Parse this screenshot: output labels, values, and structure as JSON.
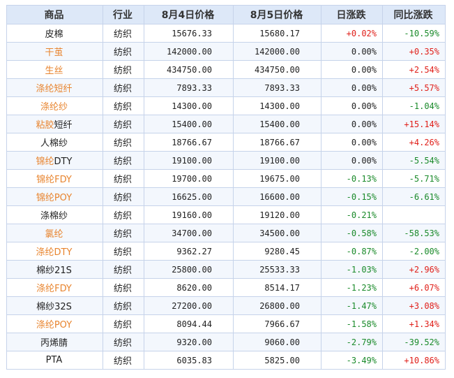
{
  "headers": [
    "商品",
    "行业",
    "8月4日价格",
    "8月5日价格",
    "日涨跌",
    "同比涨跌"
  ],
  "colors": {
    "highlight": "#e8842e",
    "up": "#e0201a",
    "down": "#1a8a2a",
    "flat": "#222222"
  },
  "rows": [
    {
      "name_hl": "",
      "name_rest": "皮棉",
      "industry": "纺织",
      "price_aug4": "15676.33",
      "price_aug5": "15680.17",
      "daily": "+0.02%",
      "daily_dir": "up",
      "yoy": "-10.59%",
      "yoy_dir": "down"
    },
    {
      "name_hl": "干茧",
      "name_rest": "",
      "industry": "纺织",
      "price_aug4": "142000.00",
      "price_aug5": "142000.00",
      "daily": "0.00%",
      "daily_dir": "flat",
      "yoy": "+0.35%",
      "yoy_dir": "up"
    },
    {
      "name_hl": "生丝",
      "name_rest": "",
      "industry": "纺织",
      "price_aug4": "434750.00",
      "price_aug5": "434750.00",
      "daily": "0.00%",
      "daily_dir": "flat",
      "yoy": "+2.54%",
      "yoy_dir": "up"
    },
    {
      "name_hl": "涤纶短纤",
      "name_rest": "",
      "industry": "纺织",
      "price_aug4": "7893.33",
      "price_aug5": "7893.33",
      "daily": "0.00%",
      "daily_dir": "flat",
      "yoy": "+5.57%",
      "yoy_dir": "up"
    },
    {
      "name_hl": "涤纶纱",
      "name_rest": "",
      "industry": "纺织",
      "price_aug4": "14300.00",
      "price_aug5": "14300.00",
      "daily": "0.00%",
      "daily_dir": "flat",
      "yoy": "-1.04%",
      "yoy_dir": "down"
    },
    {
      "name_hl": "粘胶",
      "name_rest": "短纤",
      "industry": "纺织",
      "price_aug4": "15400.00",
      "price_aug5": "15400.00",
      "daily": "0.00%",
      "daily_dir": "flat",
      "yoy": "+15.14%",
      "yoy_dir": "up"
    },
    {
      "name_hl": "",
      "name_rest": "人棉纱",
      "industry": "纺织",
      "price_aug4": "18766.67",
      "price_aug5": "18766.67",
      "daily": "0.00%",
      "daily_dir": "flat",
      "yoy": "+4.26%",
      "yoy_dir": "up"
    },
    {
      "name_hl": "锦纶",
      "name_rest": "DTY",
      "industry": "纺织",
      "price_aug4": "19100.00",
      "price_aug5": "19100.00",
      "daily": "0.00%",
      "daily_dir": "flat",
      "yoy": "-5.54%",
      "yoy_dir": "down"
    },
    {
      "name_hl": "锦纶FDY",
      "name_rest": "",
      "industry": "纺织",
      "price_aug4": "19700.00",
      "price_aug5": "19675.00",
      "daily": "-0.13%",
      "daily_dir": "down",
      "yoy": "-5.71%",
      "yoy_dir": "down"
    },
    {
      "name_hl": "锦纶POY",
      "name_rest": "",
      "industry": "纺织",
      "price_aug4": "16625.00",
      "price_aug5": "16600.00",
      "daily": "-0.15%",
      "daily_dir": "down",
      "yoy": "-6.61%",
      "yoy_dir": "down"
    },
    {
      "name_hl": "",
      "name_rest": "涤棉纱",
      "industry": "纺织",
      "price_aug4": "19160.00",
      "price_aug5": "19120.00",
      "daily": "-0.21%",
      "daily_dir": "down",
      "yoy": "",
      "yoy_dir": "flat"
    },
    {
      "name_hl": "氯纶",
      "name_rest": "",
      "industry": "纺织",
      "price_aug4": "34700.00",
      "price_aug5": "34500.00",
      "daily": "-0.58%",
      "daily_dir": "down",
      "yoy": "-58.53%",
      "yoy_dir": "down"
    },
    {
      "name_hl": "涤纶DTY",
      "name_rest": "",
      "industry": "纺织",
      "price_aug4": "9362.27",
      "price_aug5": "9280.45",
      "daily": "-0.87%",
      "daily_dir": "down",
      "yoy": "-2.00%",
      "yoy_dir": "down"
    },
    {
      "name_hl": "",
      "name_rest": "棉纱21S",
      "industry": "纺织",
      "price_aug4": "25800.00",
      "price_aug5": "25533.33",
      "daily": "-1.03%",
      "daily_dir": "down",
      "yoy": "+2.96%",
      "yoy_dir": "up"
    },
    {
      "name_hl": "涤纶FDY",
      "name_rest": "",
      "industry": "纺织",
      "price_aug4": "8620.00",
      "price_aug5": "8514.17",
      "daily": "-1.23%",
      "daily_dir": "down",
      "yoy": "+6.07%",
      "yoy_dir": "up"
    },
    {
      "name_hl": "",
      "name_rest": "棉纱32S",
      "industry": "纺织",
      "price_aug4": "27200.00",
      "price_aug5": "26800.00",
      "daily": "-1.47%",
      "daily_dir": "down",
      "yoy": "+3.08%",
      "yoy_dir": "up"
    },
    {
      "name_hl": "涤纶POY",
      "name_rest": "",
      "industry": "纺织",
      "price_aug4": "8094.44",
      "price_aug5": "7966.67",
      "daily": "-1.58%",
      "daily_dir": "down",
      "yoy": "+1.34%",
      "yoy_dir": "up"
    },
    {
      "name_hl": "",
      "name_rest": "丙烯腈",
      "industry": "纺织",
      "price_aug4": "9320.00",
      "price_aug5": "9060.00",
      "daily": "-2.79%",
      "daily_dir": "down",
      "yoy": "-39.52%",
      "yoy_dir": "down"
    },
    {
      "name_hl": "",
      "name_rest": "PTA",
      "industry": "纺织",
      "price_aug4": "6035.83",
      "price_aug5": "5825.00",
      "daily": "-3.49%",
      "daily_dir": "down",
      "yoy": "+10.86%",
      "yoy_dir": "up"
    }
  ]
}
